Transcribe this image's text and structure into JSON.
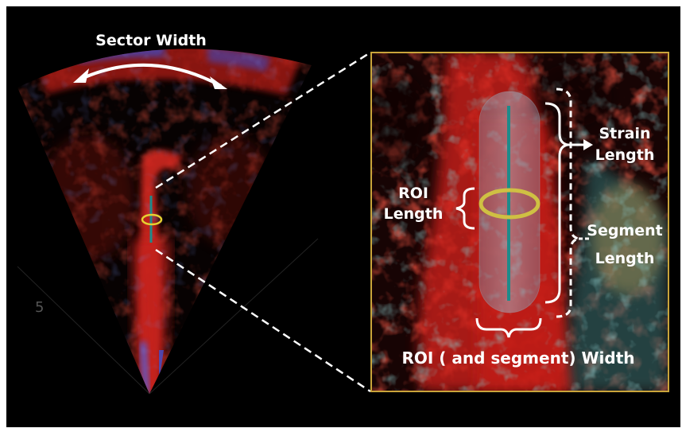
{
  "labels": {
    "sector_width": "Sector Width",
    "roi_line1": "ROI",
    "roi_line2": "Length",
    "strain_line1": "Strain",
    "strain_line2": "Length",
    "segment_line1": "Segment",
    "segment_line2": "Length",
    "roi_width": "ROI ( and segment) Width",
    "depth_marker": "5"
  },
  "colors": {
    "background": "#000000",
    "doppler_red": "#d8241c",
    "doppler_blue": "#3a4fd0",
    "inset_border": "#c9a43a",
    "roi_ellipse": "#cfc043",
    "roi_line": "#1f8a8a",
    "annotation": "#ffffff"
  }
}
